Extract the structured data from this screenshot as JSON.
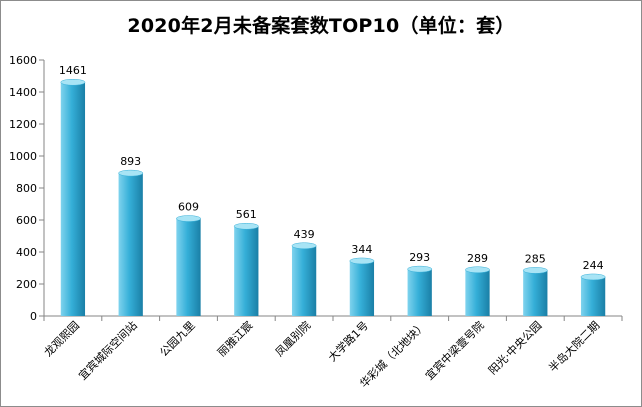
{
  "chart_data": {
    "type": "bar",
    "title": "2020年2月未备案套数TOP10（单位：套）",
    "categories": [
      "龙观熙园",
      "宜宾城际空间站",
      "公园九里",
      "丽雅江宸",
      "凤凰别院",
      "大学路1号",
      "华彩城（北地块）",
      "宜宾中梁壹号院",
      "阳光·中央公园",
      "半岛大院二期"
    ],
    "values": [
      1461,
      893,
      609,
      561,
      439,
      344,
      293,
      289,
      285,
      244
    ],
    "ylim": [
      0,
      1600
    ],
    "yticks": [
      0,
      200,
      400,
      600,
      800,
      1000,
      1200,
      1400,
      1600
    ],
    "xlabel": "",
    "ylabel": "",
    "grid": false,
    "legend": "none",
    "colors": {
      "bar_light": "#7fd3ee",
      "bar_mid": "#35afd8",
      "bar_dark": "#1a7fa6",
      "bar_top": "#a8e4f5",
      "axis": "#868686"
    }
  }
}
